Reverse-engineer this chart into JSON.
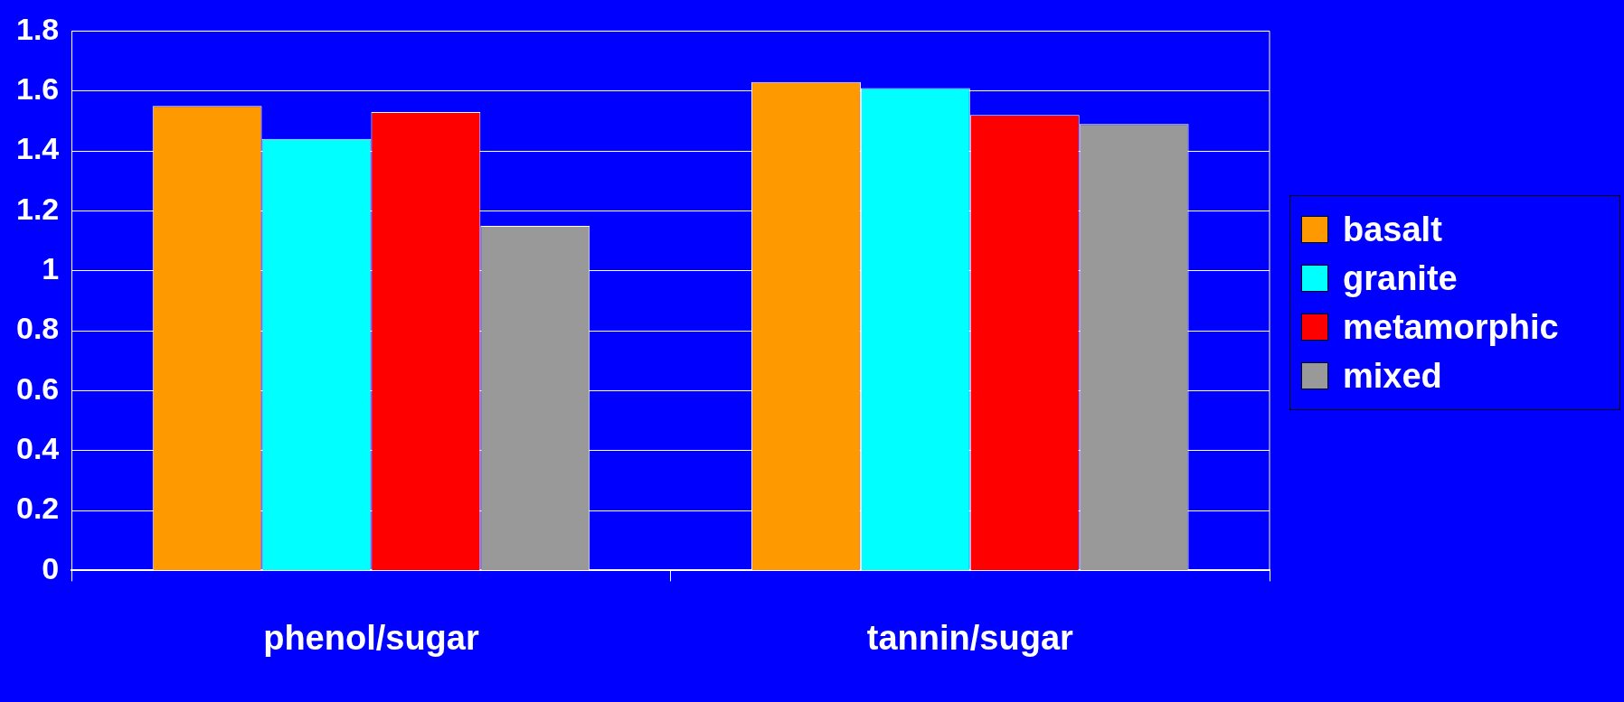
{
  "chart_data": {
    "type": "bar",
    "categories": [
      "phenol/sugar",
      "tannin/sugar"
    ],
    "series": [
      {
        "name": "basalt",
        "color": "#ff9900",
        "values": [
          1.55,
          1.63
        ]
      },
      {
        "name": "granite",
        "color": "#00ffff",
        "values": [
          1.44,
          1.61
        ]
      },
      {
        "name": "metamorphic",
        "color": "#ff0000",
        "values": [
          1.53,
          1.52
        ]
      },
      {
        "name": "mixed",
        "color": "#999999",
        "values": [
          1.15,
          1.49
        ]
      }
    ],
    "ylim": [
      0,
      1.8
    ],
    "yticks": [
      0,
      0.2,
      0.4,
      0.6,
      0.8,
      1,
      1.2,
      1.4,
      1.6,
      1.8
    ],
    "grid": "y",
    "legend": "right"
  }
}
